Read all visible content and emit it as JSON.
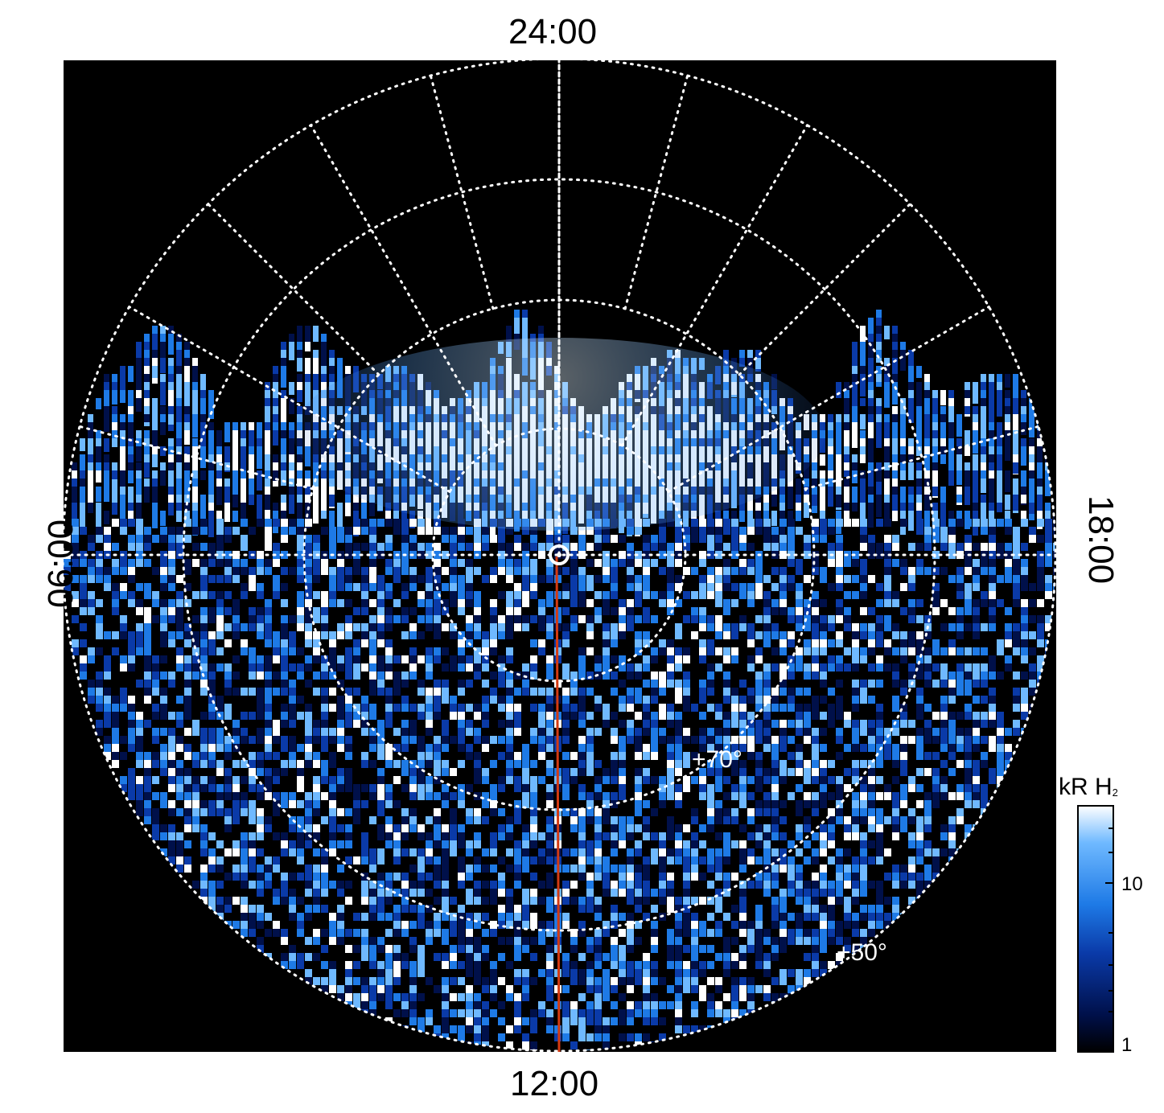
{
  "image": {
    "local_time_labels": {
      "top": "24:00",
      "bottom": "12:00",
      "left": "06:00",
      "right": "18:00"
    },
    "latitude_labels": {
      "lat_70": "+70°",
      "lat_50": "+50°"
    },
    "colorbar": {
      "title": "kR H",
      "title_subscript": "2",
      "ticks": [
        "10",
        "1"
      ],
      "scale": "log",
      "range": [
        1,
        30
      ],
      "colors": [
        "#000000",
        "#00104a",
        "#0a3aa8",
        "#1e7ae6",
        "#6fb9ff",
        "#ffffff"
      ]
    },
    "meridian_line_color": "#d43a12",
    "grid_color": "#ffffff",
    "background_color": "#000000"
  }
}
